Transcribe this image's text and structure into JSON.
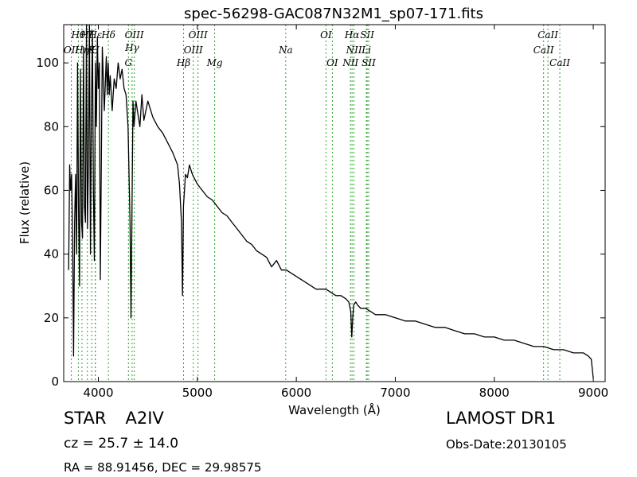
{
  "chart_data": {
    "type": "line",
    "title": "spec-56298-GAC087N32M1_sp07-171.fits",
    "xlabel": "Wavelength (Å)",
    "ylabel": "Flux (relative)",
    "xlim": [
      3650,
      9120
    ],
    "ylim": [
      0,
      112
    ],
    "xticks": [
      4000,
      5000,
      6000,
      7000,
      8000,
      9000
    ],
    "yticks": [
      0,
      20,
      40,
      60,
      80,
      100
    ],
    "grid": false,
    "series": [
      {
        "color": "#000000",
        "x": [
          3700,
          3710,
          3720,
          3730,
          3740,
          3750,
          3760,
          3770,
          3780,
          3790,
          3800,
          3810,
          3820,
          3830,
          3840,
          3850,
          3860,
          3870,
          3880,
          3890,
          3900,
          3910,
          3920,
          3930,
          3940,
          3950,
          3960,
          3970,
          3980,
          3990,
          4000,
          4010,
          4020,
          4040,
          4060,
          4080,
          4090,
          4100,
          4110,
          4120,
          4140,
          4160,
          4180,
          4200,
          4220,
          4240,
          4260,
          4280,
          4300,
          4320,
          4330,
          4340,
          4350,
          4360,
          4380,
          4400,
          4420,
          4440,
          4460,
          4480,
          4500,
          4550,
          4600,
          4650,
          4700,
          4750,
          4800,
          4820,
          4840,
          4850,
          4860,
          4870,
          4880,
          4900,
          4920,
          4950,
          5000,
          5050,
          5100,
          5150,
          5200,
          5250,
          5300,
          5350,
          5400,
          5450,
          5500,
          5550,
          5600,
          5650,
          5700,
          5750,
          5800,
          5850,
          5900,
          5950,
          6000,
          6050,
          6100,
          6150,
          6200,
          6250,
          6300,
          6350,
          6400,
          6450,
          6500,
          6530,
          6550,
          6560,
          6570,
          6580,
          6600,
          6620,
          6650,
          6700,
          6750,
          6800,
          6900,
          7000,
          7100,
          7200,
          7300,
          7400,
          7500,
          7600,
          7700,
          7800,
          7900,
          8000,
          8100,
          8200,
          8300,
          8400,
          8500,
          8600,
          8700,
          8800,
          8900,
          8950,
          8980,
          9000
        ],
        "y": [
          35,
          68,
          60,
          65,
          45,
          8,
          50,
          65,
          40,
          100,
          55,
          30,
          98,
          50,
          45,
          105,
          55,
          50,
          112,
          48,
          70,
          112,
          40,
          85,
          110,
          60,
          38,
          100,
          80,
          108,
          92,
          100,
          32,
          105,
          85,
          102,
          90,
          100,
          90,
          96,
          85,
          95,
          92,
          100,
          95,
          98,
          92,
          90,
          80,
          50,
          20,
          55,
          88,
          80,
          88,
          84,
          80,
          90,
          82,
          85,
          88,
          83,
          80,
          78,
          75,
          72,
          68,
          62,
          50,
          27,
          55,
          60,
          65,
          64,
          68,
          65,
          62,
          60,
          58,
          57,
          55,
          53,
          52,
          50,
          48,
          46,
          44,
          43,
          41,
          40,
          39,
          36,
          38,
          35,
          35,
          34,
          33,
          32,
          31,
          30,
          29,
          29,
          29,
          28,
          27,
          27,
          26,
          25,
          22,
          14,
          20,
          24,
          25,
          24,
          23,
          23,
          22,
          21,
          21,
          20,
          19,
          19,
          18,
          17,
          17,
          16,
          15,
          15,
          14,
          14,
          13,
          13,
          12,
          11,
          11,
          10,
          10,
          9,
          9,
          8,
          7,
          1
        ]
      }
    ],
    "lines": [
      {
        "label": "OII",
        "x": 3727,
        "row": 1
      },
      {
        "label": "Hθ",
        "x": 3798,
        "row": 0
      },
      {
        "label": "Hη",
        "x": 3835,
        "row": 1
      },
      {
        "label": "Hζ",
        "x": 3889,
        "row": 0
      },
      {
        "label": "K",
        "x": 3934,
        "row": 1
      },
      {
        "label": "H",
        "x": 3969,
        "row": 1
      },
      {
        "label": "Hε",
        "x": 3970,
        "row": 0
      },
      {
        "label": "Hδ",
        "x": 4102,
        "row": 0
      },
      {
        "label": "G",
        "x": 4304,
        "row": 2
      },
      {
        "label": "Hγ",
        "x": 4341,
        "row": 3
      },
      {
        "label": "OIII",
        "x": 4363,
        "row": 0
      },
      {
        "label": "Hβ",
        "x": 4861,
        "row": 2
      },
      {
        "label": "OIII",
        "x": 4959,
        "row": 1
      },
      {
        "label": "OIII",
        "x": 5007,
        "row": 0
      },
      {
        "label": "Mg",
        "x": 5175,
        "row": 2
      },
      {
        "label": "Na",
        "x": 5893,
        "row": 1
      },
      {
        "label": "OI",
        "x": 6300,
        "row": 0
      },
      {
        "label": "OI",
        "x": 6364,
        "row": 2
      },
      {
        "label": "NII",
        "x": 6548,
        "row": 2
      },
      {
        "label": "Hα",
        "x": 6563,
        "row": 0
      },
      {
        "label": "NII",
        "x": 6583,
        "row": 1
      },
      {
        "label": "Li",
        "x": 6708,
        "row": 1
      },
      {
        "label": "SII",
        "x": 6716,
        "row": 0
      },
      {
        "label": "SII",
        "x": 6731,
        "row": 2
      },
      {
        "label": "CaII",
        "x": 8498,
        "row": 1
      },
      {
        "label": "CaII",
        "x": 8542,
        "row": 0
      },
      {
        "label": "CaII",
        "x": 8662,
        "row": 2
      }
    ],
    "line_color": "#2ca02c"
  },
  "info": {
    "class_label": "STAR",
    "subclass": "A2IV",
    "cz": "cz = 25.7 ± 14.0",
    "coords": "RA = 88.91456, DEC = 29.98575",
    "survey": "LAMOST DR1",
    "obs_date": "Obs-Date:20130105"
  }
}
